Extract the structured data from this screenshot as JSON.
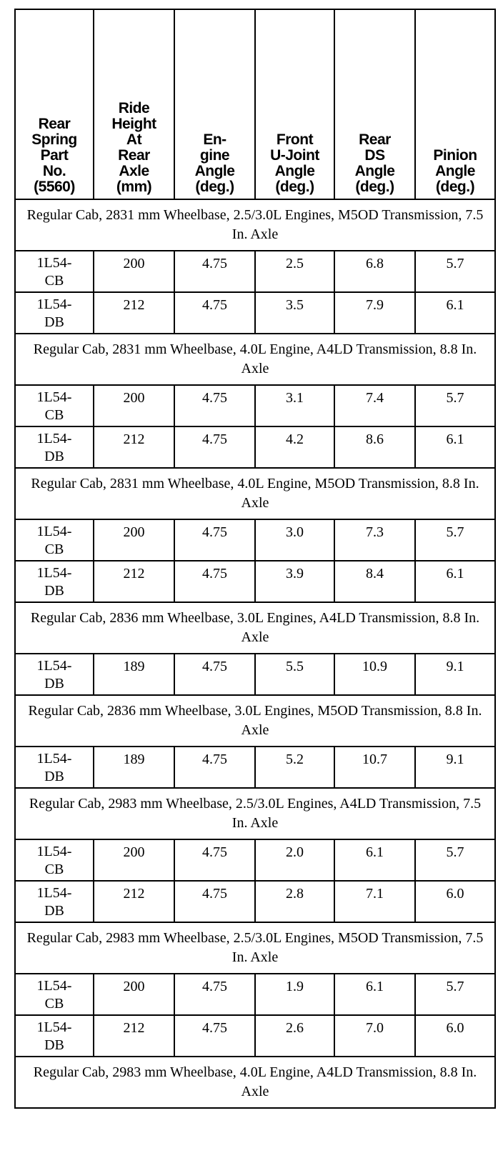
{
  "columns": [
    "Rear Spring Part No. (5560)",
    "Ride Height At Rear Axle (mm)",
    "En- gine Angle (deg.)",
    "Front U-Joint Angle (deg.)",
    "Rear DS Angle (deg.)",
    "Pinion Angle (deg.)"
  ],
  "sections": [
    {
      "title": "Regular Cab, 2831 mm Wheelbase, 2.5/3.0L Engines, M5OD Transmission, 7.5 In. Axle",
      "rows": [
        [
          "1L54-CB",
          "200",
          "4.75",
          "2.5",
          "6.8",
          "5.7"
        ],
        [
          "1L54-DB",
          "212",
          "4.75",
          "3.5",
          "7.9",
          "6.1"
        ]
      ]
    },
    {
      "title": "Regular Cab, 2831 mm Wheelbase, 4.0L Engine, A4LD Transmission, 8.8 In. Axle",
      "rows": [
        [
          "1L54-CB",
          "200",
          "4.75",
          "3.1",
          "7.4",
          "5.7"
        ],
        [
          "1L54-DB",
          "212",
          "4.75",
          "4.2",
          "8.6",
          "6.1"
        ]
      ]
    },
    {
      "title": "Regular Cab, 2831 mm Wheelbase, 4.0L Engine, M5OD Transmission, 8.8 In. Axle",
      "rows": [
        [
          "1L54-CB",
          "200",
          "4.75",
          "3.0",
          "7.3",
          "5.7"
        ],
        [
          "1L54-DB",
          "212",
          "4.75",
          "3.9",
          "8.4",
          "6.1"
        ]
      ]
    },
    {
      "title": "Regular Cab, 2836 mm Wheelbase, 3.0L Engines, A4LD Transmission, 8.8 In. Axle",
      "rows": [
        [
          "1L54-DB",
          "189",
          "4.75",
          "5.5",
          "10.9",
          "9.1"
        ]
      ]
    },
    {
      "title": "Regular Cab, 2836 mm Wheelbase, 3.0L Engines, M5OD Transmission, 8.8 In. Axle",
      "rows": [
        [
          "1L54-DB",
          "189",
          "4.75",
          "5.2",
          "10.7",
          "9.1"
        ]
      ]
    },
    {
      "title": "Regular Cab, 2983 mm Wheelbase, 2.5/3.0L Engines, A4LD Transmission, 7.5 In. Axle",
      "rows": [
        [
          "1L54-CB",
          "200",
          "4.75",
          "2.0",
          "6.1",
          "5.7"
        ],
        [
          "1L54-DB",
          "212",
          "4.75",
          "2.8",
          "7.1",
          "6.0"
        ]
      ]
    },
    {
      "title": "Regular Cab, 2983 mm Wheelbase, 2.5/3.0L Engines, M5OD Transmission, 7.5 In. Axle",
      "rows": [
        [
          "1L54-CB",
          "200",
          "4.75",
          "1.9",
          "6.1",
          "5.7"
        ],
        [
          "1L54-DB",
          "212",
          "4.75",
          "2.6",
          "7.0",
          "6.0"
        ]
      ]
    },
    {
      "title": "Regular Cab, 2983 mm Wheelbase, 4.0L Engine, A4LD Transmission, 8.8 In. Axle",
      "rows": []
    }
  ]
}
